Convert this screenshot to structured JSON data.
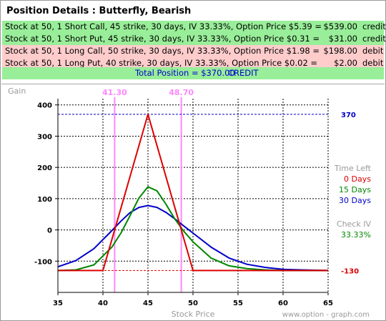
{
  "title": "Position Details : Butterfly, Bearish",
  "positions": [
    {
      "desc": "Stock at 50, 1 Short Call, 45 strike, 30 days, IV 33.33%, Option Price $5.39 =",
      "amount": "$539.00",
      "kind": "credit",
      "color": "#99ee99"
    },
    {
      "desc": "Stock at 50, 1 Short Put, 45 strike, 30 days, IV 33.33%, Option Price $0.31 =",
      "amount": "$31.00",
      "kind": "credit",
      "color": "#99ee99"
    },
    {
      "desc": "Stock at 50, 1 Long Call, 50 strike, 30 days, IV 33.33%, Option Price $1.98 =",
      "amount": "$198.00",
      "kind": "debit",
      "color": "#ffcccc"
    },
    {
      "desc": "Stock at 50, 1 Long Put, 40 strike, 30 days, IV 33.33%, Option Price $0.02 =",
      "amount": "$2.00",
      "kind": "debit",
      "color": "#ffcccc"
    }
  ],
  "total": {
    "text": "Total Position = $370.00",
    "label": "CREDIT"
  },
  "chart_data": {
    "type": "line",
    "ylabel": "Gain",
    "xlabel": "Stock Price",
    "watermark": "www.option - graph.com",
    "xlim": [
      35,
      65
    ],
    "ylim": [
      -200,
      420
    ],
    "xticks": [
      35,
      40,
      45,
      50,
      55,
      60,
      65
    ],
    "yticks": [
      -100,
      0,
      100,
      200,
      300,
      400
    ],
    "grid": true,
    "breakevens": [
      41.3,
      48.7
    ],
    "breakeven_labels": [
      "41.30",
      "48.70"
    ],
    "max_gain": 370,
    "max_gain_label": "370",
    "max_loss": -130,
    "max_loss_label": "-130",
    "legend_title": "Time Left",
    "series": [
      {
        "name": "0 Days",
        "color": "#dd0000",
        "x": [
          35,
          40,
          45,
          50,
          65
        ],
        "y": [
          -130,
          -130,
          370,
          -130,
          -130
        ]
      },
      {
        "name": "15 Days",
        "color": "#008800",
        "x": [
          35,
          37,
          39,
          41,
          42,
          43,
          44,
          45,
          46,
          47,
          48,
          49,
          50,
          52,
          54,
          56,
          58,
          60,
          62,
          65
        ],
        "y": [
          -130,
          -128,
          -112,
          -55,
          -10,
          45,
          102,
          138,
          125,
          82,
          34,
          -5,
          -38,
          -90,
          -115,
          -124,
          -128,
          -130,
          -130,
          -130
        ]
      },
      {
        "name": "30 Days",
        "color": "#0000cc",
        "x": [
          35,
          37,
          39,
          41,
          42,
          43,
          44,
          45,
          46,
          47,
          48,
          49,
          50,
          52,
          54,
          56,
          58,
          60,
          62,
          65
        ],
        "y": [
          -118,
          -98,
          -60,
          -2,
          28,
          55,
          72,
          78,
          72,
          56,
          35,
          12,
          -10,
          -55,
          -90,
          -110,
          -120,
          -126,
          -128,
          -130
        ]
      }
    ],
    "check_iv_label": "Check IV",
    "check_iv_value": "33.33%"
  }
}
